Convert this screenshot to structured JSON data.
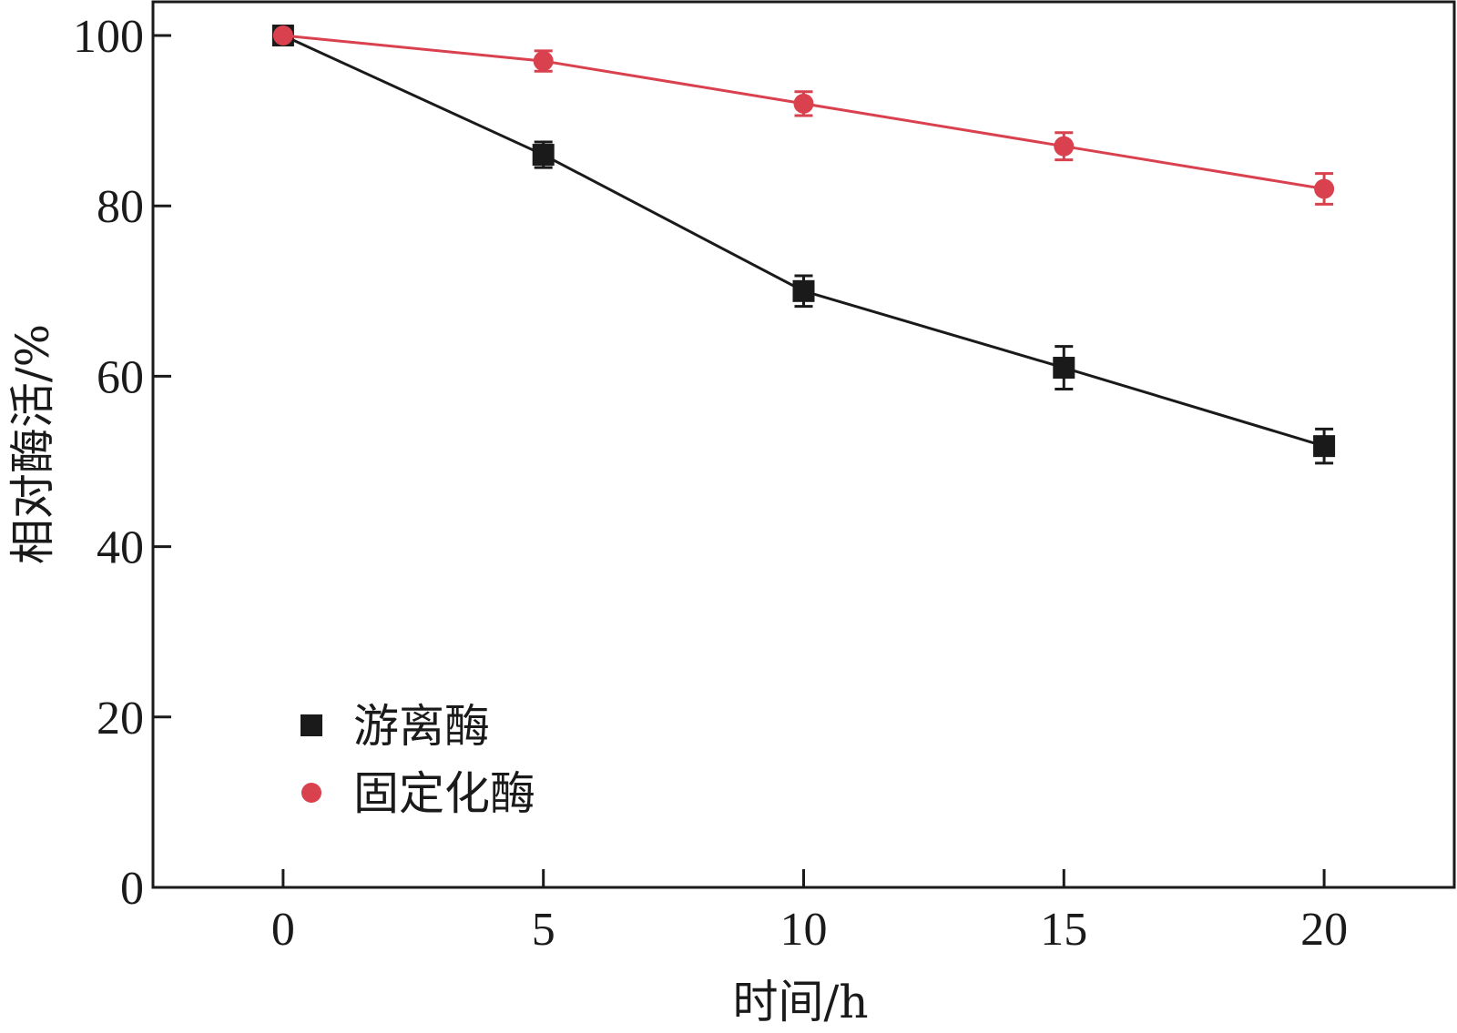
{
  "chart_data": {
    "type": "line",
    "xlabel": "时间/h",
    "ylabel": "相对酶活/%",
    "x": [
      0,
      5,
      10,
      15,
      20
    ],
    "xlim": [
      -2.5,
      22.5
    ],
    "ylim": [
      0,
      100
    ],
    "xticks": [
      0,
      5,
      10,
      15,
      20
    ],
    "yticks": [
      0,
      20,
      40,
      60,
      80,
      100
    ],
    "grid": false,
    "legend_position": "bottom-left",
    "series": [
      {
        "name": "游离酶",
        "marker": "square",
        "color": "#1a1a1a",
        "values": [
          100,
          86,
          70,
          61,
          51.8
        ],
        "errors": [
          0,
          1.5,
          1.8,
          2.5,
          2.0
        ]
      },
      {
        "name": "固定化酶",
        "marker": "circle",
        "color": "#d9414e",
        "values": [
          100,
          97,
          92,
          87,
          82
        ],
        "errors": [
          0,
          1.2,
          1.4,
          1.6,
          1.8
        ]
      }
    ]
  }
}
